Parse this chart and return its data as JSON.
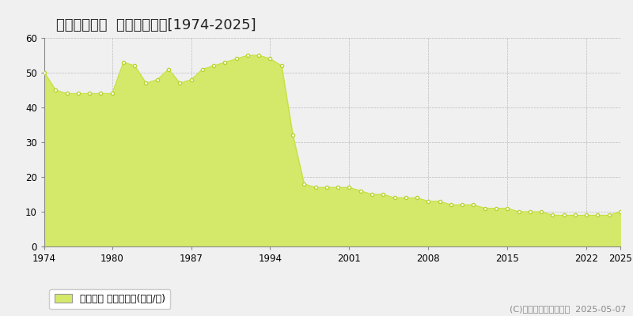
{
  "title": "柳井市古開作  公示地価推移[1974-2025]",
  "years": [
    1974,
    1975,
    1976,
    1977,
    1978,
    1979,
    1980,
    1981,
    1982,
    1983,
    1984,
    1985,
    1986,
    1987,
    1988,
    1989,
    1990,
    1991,
    1992,
    1993,
    1994,
    1995,
    1996,
    1997,
    1998,
    1999,
    2000,
    2001,
    2002,
    2003,
    2004,
    2005,
    2006,
    2007,
    2008,
    2009,
    2010,
    2011,
    2012,
    2013,
    2014,
    2015,
    2016,
    2017,
    2018,
    2019,
    2020,
    2021,
    2022,
    2023,
    2024,
    2025
  ],
  "values": [
    50,
    45,
    44,
    44,
    44,
    44,
    44,
    53,
    52,
    47,
    48,
    51,
    47,
    48,
    51,
    52,
    53,
    54,
    55,
    55,
    54,
    52,
    32,
    18,
    17,
    17,
    17,
    17,
    16,
    15,
    15,
    14,
    14,
    14,
    13,
    13,
    12,
    12,
    12,
    11,
    11,
    11,
    10,
    10,
    10,
    9,
    9,
    9,
    9,
    9,
    9,
    10
  ],
  "fill_color": "#d4e96a",
  "line_color": "#c8e040",
  "marker_color": "#b8d430",
  "marker_face": "#ffffff",
  "bg_color": "#f0f0f0",
  "plot_bg_color": "#f0f0f0",
  "grid_color": "#bbbbbb",
  "ylim": [
    0,
    60
  ],
  "yticks": [
    0,
    10,
    20,
    30,
    40,
    50,
    60
  ],
  "xticks": [
    1974,
    1980,
    1987,
    1994,
    2001,
    2008,
    2015,
    2022,
    2025
  ],
  "legend_label": "公示地価 平均坪単価(万円/坪)",
  "copyright": "(C)土地価格ドットコム  2025-05-07",
  "title_fontsize": 13,
  "tick_fontsize": 8.5,
  "legend_fontsize": 9,
  "copyright_fontsize": 8
}
